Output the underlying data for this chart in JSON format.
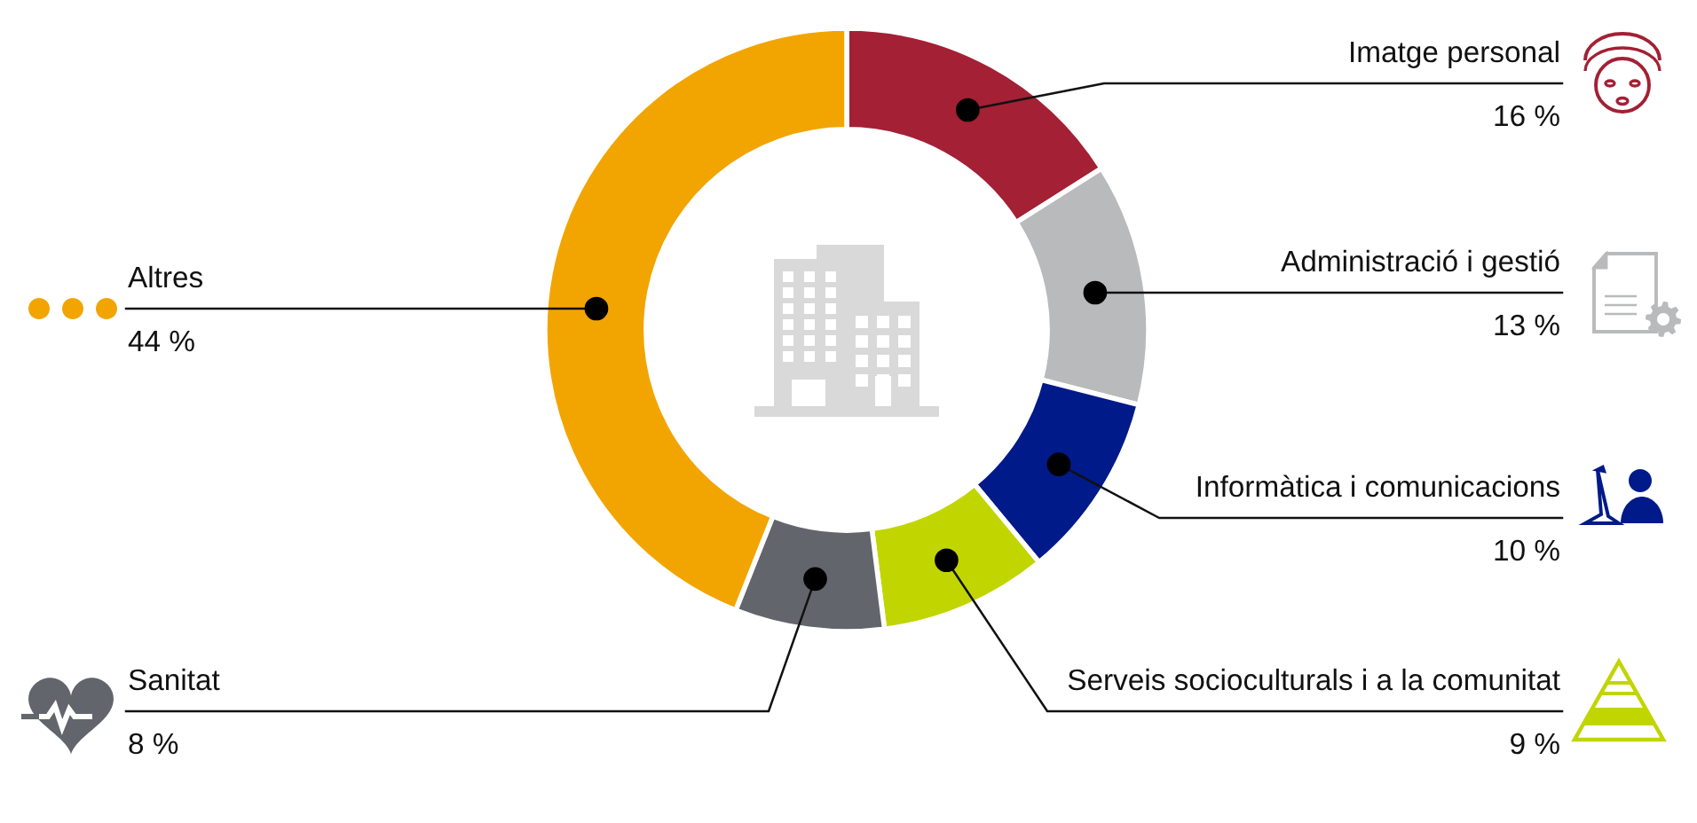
{
  "chart_data": {
    "type": "donut",
    "categories": [
      "Imatge personal",
      "Administració i gestió",
      "Informàtica i comunicacions",
      "Serveis socioculturals i a la comunitat",
      "Sanitat",
      "Altres"
    ],
    "values": [
      16,
      13,
      10,
      9,
      8,
      44
    ],
    "colors": [
      "#a32035",
      "#b9babc",
      "#001a8a",
      "#c1d500",
      "#62656c",
      "#f2a500"
    ],
    "value_labels": [
      "16 %",
      "13 %",
      "10 %",
      "9 %",
      "8 %",
      "44 %"
    ],
    "legend": "right"
  }
}
